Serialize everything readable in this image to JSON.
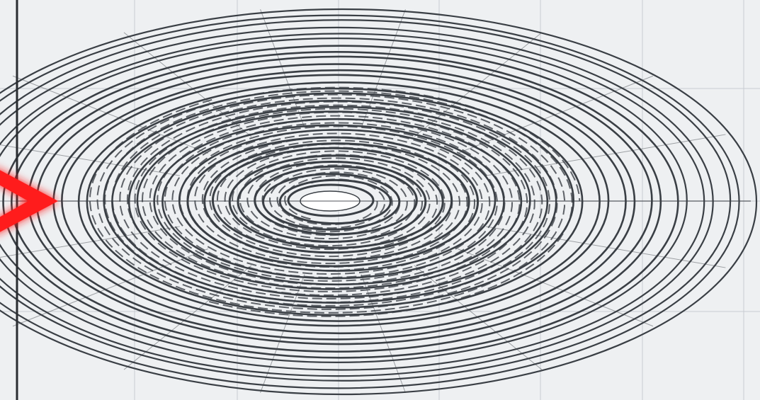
{
  "diagram": {
    "kind": "spiral-ellipse-rings",
    "colors": {
      "background": "#eef0f2",
      "grid": "#c8ccd2",
      "frame_line": "#2a2d31",
      "rings": "#3a3f45",
      "center_fill": "#ffffff",
      "arrow": "#ff1a1a"
    },
    "pointer_icon": "red-arrow-icon"
  }
}
